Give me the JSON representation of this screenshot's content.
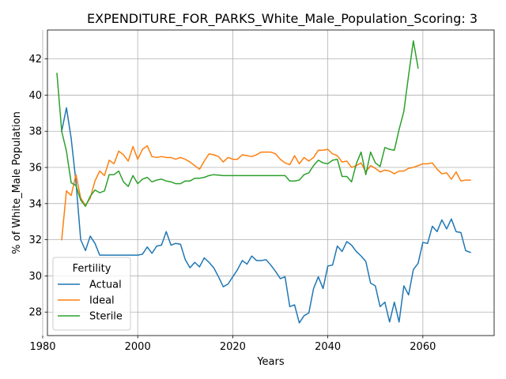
{
  "chart_data": {
    "type": "line",
    "title": "EXPENDITURE_FOR_PARKS_White_Male_Population_Scoring: 3",
    "xlabel": "Years",
    "ylabel": "% of White_Male Population",
    "xlim": [
      1981,
      2075
    ],
    "ylim": [
      26.7,
      43.6
    ],
    "xticks": [
      1980,
      2000,
      2020,
      2040,
      2060
    ],
    "yticks": [
      28,
      30,
      32,
      34,
      36,
      38,
      40,
      42
    ],
    "grid": true,
    "legend": {
      "title": "Fertility",
      "placement": "lower-left"
    },
    "series": [
      {
        "name": "Actual",
        "color": "#1f77b4",
        "points": [
          [
            1984,
            38.0
          ],
          [
            1985,
            39.3
          ],
          [
            1986,
            37.6
          ],
          [
            1987,
            35.2
          ],
          [
            1988,
            32.0
          ],
          [
            1989,
            31.4
          ],
          [
            1990,
            32.2
          ],
          [
            1991,
            31.8
          ],
          [
            1992,
            31.15
          ],
          [
            1994,
            31.15
          ],
          [
            1996,
            31.15
          ],
          [
            1998,
            31.15
          ],
          [
            2000,
            31.15
          ],
          [
            2001,
            31.2
          ],
          [
            2002,
            31.6
          ],
          [
            2003,
            31.25
          ],
          [
            2004,
            31.65
          ],
          [
            2005,
            31.7
          ],
          [
            2006,
            32.45
          ],
          [
            2007,
            31.7
          ],
          [
            2008,
            31.8
          ],
          [
            2009,
            31.75
          ],
          [
            2010,
            30.9
          ],
          [
            2011,
            30.45
          ],
          [
            2012,
            30.75
          ],
          [
            2013,
            30.5
          ],
          [
            2014,
            31.0
          ],
          [
            2015,
            30.75
          ],
          [
            2016,
            30.45
          ],
          [
            2017,
            29.95
          ],
          [
            2018,
            29.4
          ],
          [
            2019,
            29.55
          ],
          [
            2020,
            29.95
          ],
          [
            2021,
            30.35
          ],
          [
            2022,
            30.85
          ],
          [
            2023,
            30.65
          ],
          [
            2024,
            31.1
          ],
          [
            2025,
            30.85
          ],
          [
            2026,
            30.85
          ],
          [
            2027,
            30.9
          ],
          [
            2028,
            30.6
          ],
          [
            2029,
            30.25
          ],
          [
            2030,
            29.85
          ],
          [
            2031,
            29.95
          ],
          [
            2032,
            28.3
          ],
          [
            2033,
            28.4
          ],
          [
            2034,
            27.4
          ],
          [
            2035,
            27.8
          ],
          [
            2036,
            27.95
          ],
          [
            2037,
            29.3
          ],
          [
            2038,
            29.95
          ],
          [
            2039,
            29.3
          ],
          [
            2040,
            30.55
          ],
          [
            2041,
            30.6
          ],
          [
            2042,
            31.65
          ],
          [
            2043,
            31.35
          ],
          [
            2044,
            31.9
          ],
          [
            2045,
            31.7
          ],
          [
            2046,
            31.35
          ],
          [
            2047,
            31.1
          ],
          [
            2048,
            30.8
          ],
          [
            2049,
            29.6
          ],
          [
            2050,
            29.45
          ],
          [
            2051,
            28.3
          ],
          [
            2052,
            28.55
          ],
          [
            2053,
            27.45
          ],
          [
            2054,
            28.55
          ],
          [
            2055,
            27.45
          ],
          [
            2056,
            29.45
          ],
          [
            2057,
            28.95
          ],
          [
            2058,
            30.35
          ],
          [
            2059,
            30.7
          ],
          [
            2060,
            31.85
          ],
          [
            2061,
            31.8
          ],
          [
            2062,
            32.75
          ],
          [
            2063,
            32.45
          ],
          [
            2064,
            33.1
          ],
          [
            2065,
            32.6
          ],
          [
            2066,
            33.15
          ],
          [
            2067,
            32.45
          ],
          [
            2068,
            32.4
          ],
          [
            2069,
            31.4
          ],
          [
            2070,
            31.3
          ]
        ]
      },
      {
        "name": "Ideal",
        "color": "#ff7f0e",
        "points": [
          [
            1984,
            32.0
          ],
          [
            1985,
            34.7
          ],
          [
            1986,
            34.45
          ],
          [
            1987,
            35.6
          ],
          [
            1988,
            34.3
          ],
          [
            1989,
            33.9
          ],
          [
            1990,
            34.3
          ],
          [
            1991,
            35.25
          ],
          [
            1992,
            35.8
          ],
          [
            1993,
            35.55
          ],
          [
            1994,
            36.4
          ],
          [
            1995,
            36.2
          ],
          [
            1996,
            36.9
          ],
          [
            1997,
            36.7
          ],
          [
            1998,
            36.35
          ],
          [
            1999,
            37.15
          ],
          [
            2000,
            36.45
          ],
          [
            2001,
            37.0
          ],
          [
            2002,
            37.2
          ],
          [
            2003,
            36.6
          ],
          [
            2004,
            36.55
          ],
          [
            2005,
            36.6
          ],
          [
            2006,
            36.55
          ],
          [
            2007,
            36.55
          ],
          [
            2008,
            36.45
          ],
          [
            2009,
            36.55
          ],
          [
            2010,
            36.45
          ],
          [
            2011,
            36.3
          ],
          [
            2012,
            36.1
          ],
          [
            2013,
            35.9
          ],
          [
            2014,
            36.35
          ],
          [
            2015,
            36.75
          ],
          [
            2016,
            36.7
          ],
          [
            2017,
            36.6
          ],
          [
            2018,
            36.3
          ],
          [
            2019,
            36.55
          ],
          [
            2020,
            36.45
          ],
          [
            2021,
            36.45
          ],
          [
            2022,
            36.7
          ],
          [
            2023,
            36.65
          ],
          [
            2024,
            36.6
          ],
          [
            2025,
            36.7
          ],
          [
            2026,
            36.85
          ],
          [
            2027,
            36.85
          ],
          [
            2028,
            36.85
          ],
          [
            2029,
            36.75
          ],
          [
            2030,
            36.45
          ],
          [
            2031,
            36.25
          ],
          [
            2032,
            36.15
          ],
          [
            2033,
            36.65
          ],
          [
            2034,
            36.2
          ],
          [
            2035,
            36.55
          ],
          [
            2036,
            36.35
          ],
          [
            2037,
            36.55
          ],
          [
            2038,
            36.95
          ],
          [
            2039,
            36.95
          ],
          [
            2040,
            37.0
          ],
          [
            2041,
            36.75
          ],
          [
            2042,
            36.65
          ],
          [
            2043,
            36.3
          ],
          [
            2044,
            36.35
          ],
          [
            2045,
            36.0
          ],
          [
            2046,
            36.1
          ],
          [
            2047,
            36.25
          ],
          [
            2048,
            35.75
          ],
          [
            2049,
            36.1
          ],
          [
            2050,
            35.95
          ],
          [
            2051,
            35.75
          ],
          [
            2052,
            35.85
          ],
          [
            2053,
            35.8
          ],
          [
            2054,
            35.65
          ],
          [
            2055,
            35.8
          ],
          [
            2056,
            35.8
          ],
          [
            2057,
            35.95
          ],
          [
            2058,
            36.0
          ],
          [
            2059,
            36.1
          ],
          [
            2060,
            36.2
          ],
          [
            2061,
            36.2
          ],
          [
            2062,
            36.25
          ],
          [
            2063,
            35.9
          ],
          [
            2064,
            35.65
          ],
          [
            2065,
            35.7
          ],
          [
            2066,
            35.35
          ],
          [
            2067,
            35.75
          ],
          [
            2068,
            35.25
          ],
          [
            2069,
            35.3
          ],
          [
            2070,
            35.3
          ]
        ]
      },
      {
        "name": "Sterile",
        "color": "#2ca02c",
        "points": [
          [
            1983,
            41.2
          ],
          [
            1984,
            38.0
          ],
          [
            1985,
            36.9
          ],
          [
            1986,
            35.15
          ],
          [
            1987,
            35.0
          ],
          [
            1988,
            34.2
          ],
          [
            1989,
            33.85
          ],
          [
            1990,
            34.4
          ],
          [
            1991,
            34.75
          ],
          [
            1992,
            34.6
          ],
          [
            1993,
            34.7
          ],
          [
            1994,
            35.6
          ],
          [
            1995,
            35.6
          ],
          [
            1996,
            35.8
          ],
          [
            1997,
            35.2
          ],
          [
            1998,
            34.95
          ],
          [
            1999,
            35.55
          ],
          [
            2000,
            35.1
          ],
          [
            2001,
            35.35
          ],
          [
            2002,
            35.45
          ],
          [
            2003,
            35.2
          ],
          [
            2004,
            35.3
          ],
          [
            2005,
            35.35
          ],
          [
            2006,
            35.25
          ],
          [
            2007,
            35.2
          ],
          [
            2008,
            35.1
          ],
          [
            2009,
            35.1
          ],
          [
            2010,
            35.25
          ],
          [
            2011,
            35.25
          ],
          [
            2012,
            35.4
          ],
          [
            2013,
            35.4
          ],
          [
            2014,
            35.45
          ],
          [
            2015,
            35.55
          ],
          [
            2016,
            35.6
          ],
          [
            2018,
            35.55
          ],
          [
            2020,
            35.55
          ],
          [
            2022,
            35.55
          ],
          [
            2024,
            35.55
          ],
          [
            2026,
            35.55
          ],
          [
            2028,
            35.55
          ],
          [
            2030,
            35.55
          ],
          [
            2031,
            35.55
          ],
          [
            2032,
            35.25
          ],
          [
            2033,
            35.25
          ],
          [
            2034,
            35.3
          ],
          [
            2035,
            35.6
          ],
          [
            2036,
            35.7
          ],
          [
            2037,
            36.1
          ],
          [
            2038,
            36.4
          ],
          [
            2039,
            36.25
          ],
          [
            2040,
            36.2
          ],
          [
            2041,
            36.4
          ],
          [
            2042,
            36.45
          ],
          [
            2043,
            35.5
          ],
          [
            2044,
            35.5
          ],
          [
            2045,
            35.2
          ],
          [
            2046,
            36.2
          ],
          [
            2047,
            36.85
          ],
          [
            2048,
            35.6
          ],
          [
            2049,
            36.85
          ],
          [
            2050,
            36.25
          ],
          [
            2051,
            36.05
          ],
          [
            2052,
            37.1
          ],
          [
            2053,
            37.0
          ],
          [
            2054,
            36.95
          ],
          [
            2055,
            38.1
          ],
          [
            2056,
            39.1
          ],
          [
            2057,
            41.1
          ],
          [
            2058,
            43.0
          ],
          [
            2059,
            41.5
          ]
        ]
      }
    ]
  }
}
